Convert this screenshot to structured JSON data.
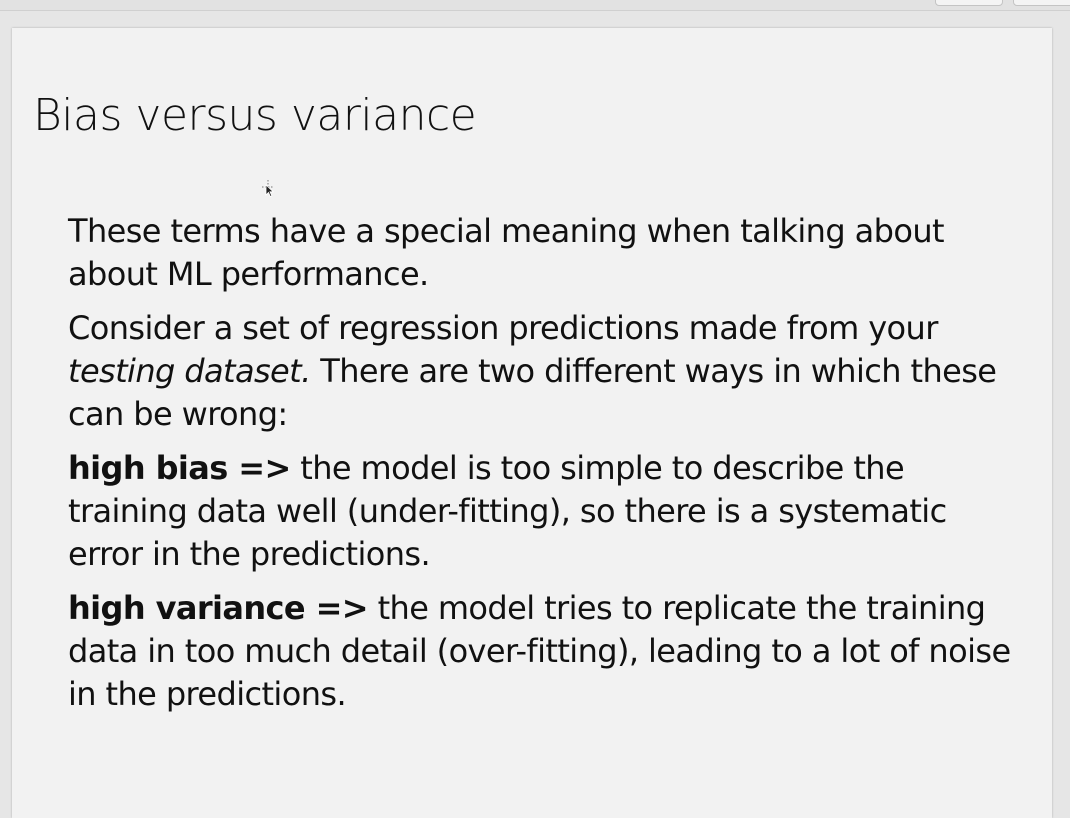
{
  "slide": {
    "title": "Bias versus variance",
    "paragraphs": {
      "intro": "These terms have a special meaning when talking about about ML performance.",
      "consider_before": "Consider a set of regression predictions made from your ",
      "consider_italic": "testing dataset.",
      "consider_after": " There are two different ways in which these can be wrong:",
      "bias_term": "high bias =>",
      "bias_text": " the model is too simple to describe the training data well (under-fitting), so there is a systematic error in the predictions.",
      "variance_term": "high variance =>",
      "variance_text": " the model tries to replicate the training data in too much detail (over-fitting), leading to a lot of noise in the predictions."
    }
  },
  "icons": {
    "cursor": "move-cursor-icon"
  }
}
